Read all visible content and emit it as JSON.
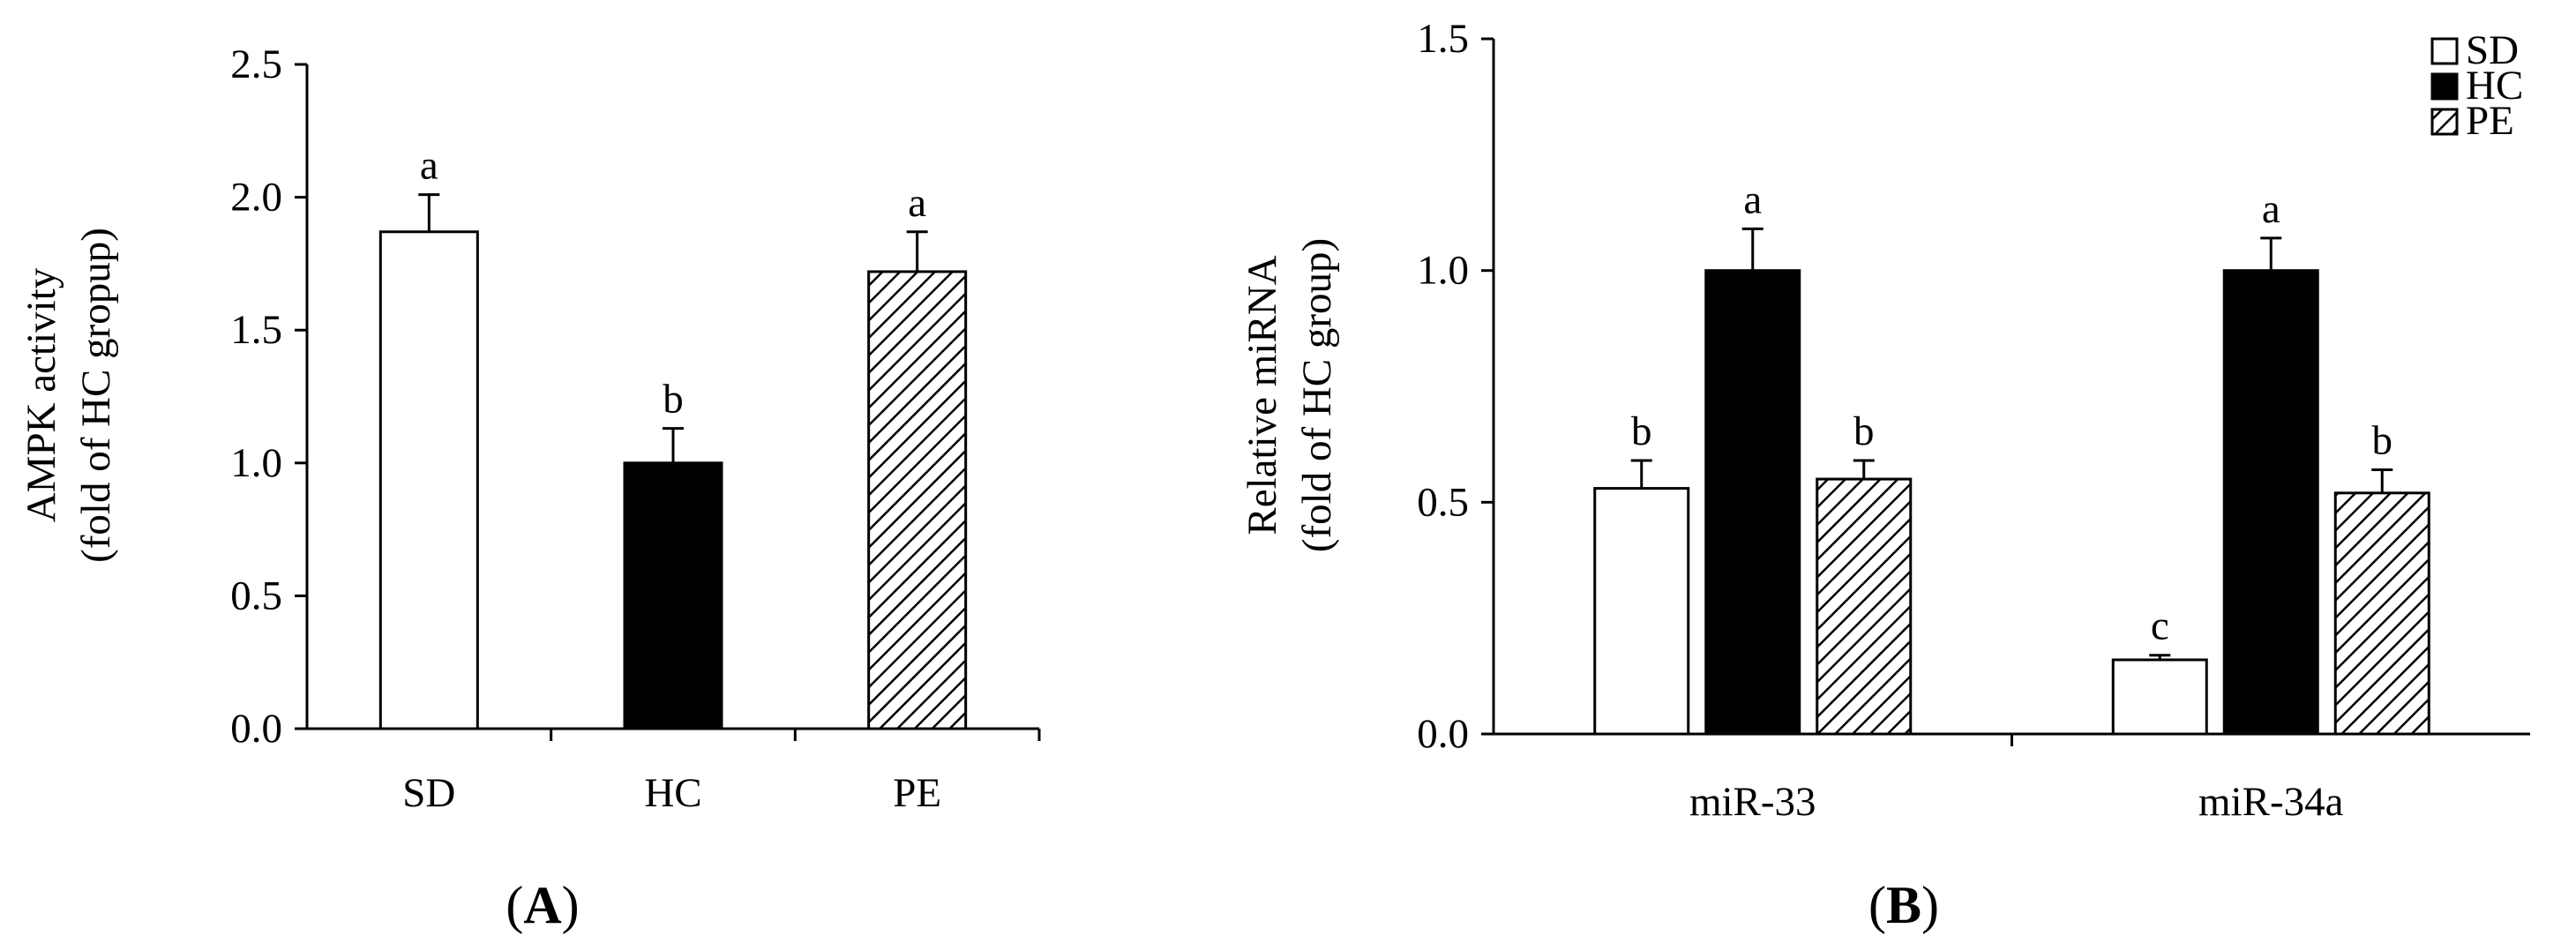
{
  "chart_data": [
    {
      "type": "bar",
      "panel_label": "A",
      "ylabel_line1": "AMPK activity",
      "ylabel_line2": "(fold of HC gropup)",
      "xlabel": "",
      "ylim": [
        0,
        2.5
      ],
      "yticks": [
        "0.0",
        "0.5",
        "1.0",
        "1.5",
        "2.0",
        "2.5"
      ],
      "categories": [
        "SD",
        "HC",
        "PE"
      ],
      "series": [
        {
          "name": "AMPK activity",
          "values": [
            1.87,
            1.0,
            1.72
          ],
          "errors": [
            0.14,
            0.13,
            0.15
          ],
          "letters": [
            "a",
            "b",
            "a"
          ],
          "fills": [
            "white",
            "black",
            "hatch"
          ]
        }
      ]
    },
    {
      "type": "bar",
      "panel_label": "B",
      "ylabel_line1": "Relative miRNA",
      "ylabel_line2": "(fold of HC group)",
      "xlabel": "",
      "ylim": [
        0,
        1.5
      ],
      "yticks": [
        "0.0",
        "0.5",
        "1.0",
        "1.5"
      ],
      "categories": [
        "miR-33",
        "miR-34a"
      ],
      "legend_position": "top-right",
      "series": [
        {
          "name": "SD",
          "fill": "white",
          "values": [
            0.53,
            0.16
          ],
          "errors": [
            0.06,
            0.01
          ],
          "letters": [
            "b",
            "c"
          ]
        },
        {
          "name": "HC",
          "fill": "black",
          "values": [
            1.0,
            1.0
          ],
          "errors": [
            0.09,
            0.07
          ],
          "letters": [
            "a",
            "a"
          ]
        },
        {
          "name": "PE",
          "fill": "hatch",
          "values": [
            0.55,
            0.52
          ],
          "errors": [
            0.04,
            0.05
          ],
          "letters": [
            "b",
            "b"
          ]
        }
      ]
    }
  ]
}
